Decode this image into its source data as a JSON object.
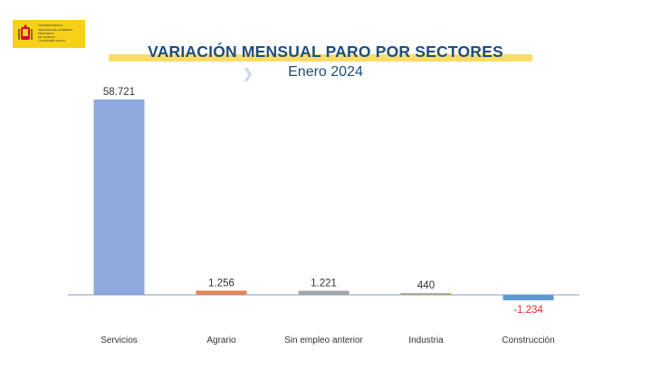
{
  "header": {
    "logo_line1": "VICEPRESIDENCIA",
    "logo_line2": "SEGUNDA DEL GOBIERNO",
    "logo_line3": "MINISTERIO",
    "logo_line4": "DE TRABAJO",
    "logo_line5": "Y ECONOMÍA SOCIAL"
  },
  "chart_data": {
    "type": "bar",
    "title": "VARIACIÓN MENSUAL PARO POR SECTORES",
    "subtitle": "Enero 2024",
    "categories": [
      "Servicios",
      "Agrario",
      "Sin empleo anterior",
      "Industria",
      "Construcción"
    ],
    "values": [
      58721,
      1256,
      1221,
      440,
      -1234
    ],
    "value_labels": [
      "58.721",
      "1.256",
      "1.221",
      "440",
      "-1.234"
    ],
    "colors": [
      "#8eaadc",
      "#e8844a",
      "#a5a5a5",
      "#c9b84a",
      "#5b9bd5"
    ],
    "negative_label_color": "#e03030",
    "ylim": [
      -1234,
      58721
    ],
    "grid": false,
    "legend": "none"
  }
}
